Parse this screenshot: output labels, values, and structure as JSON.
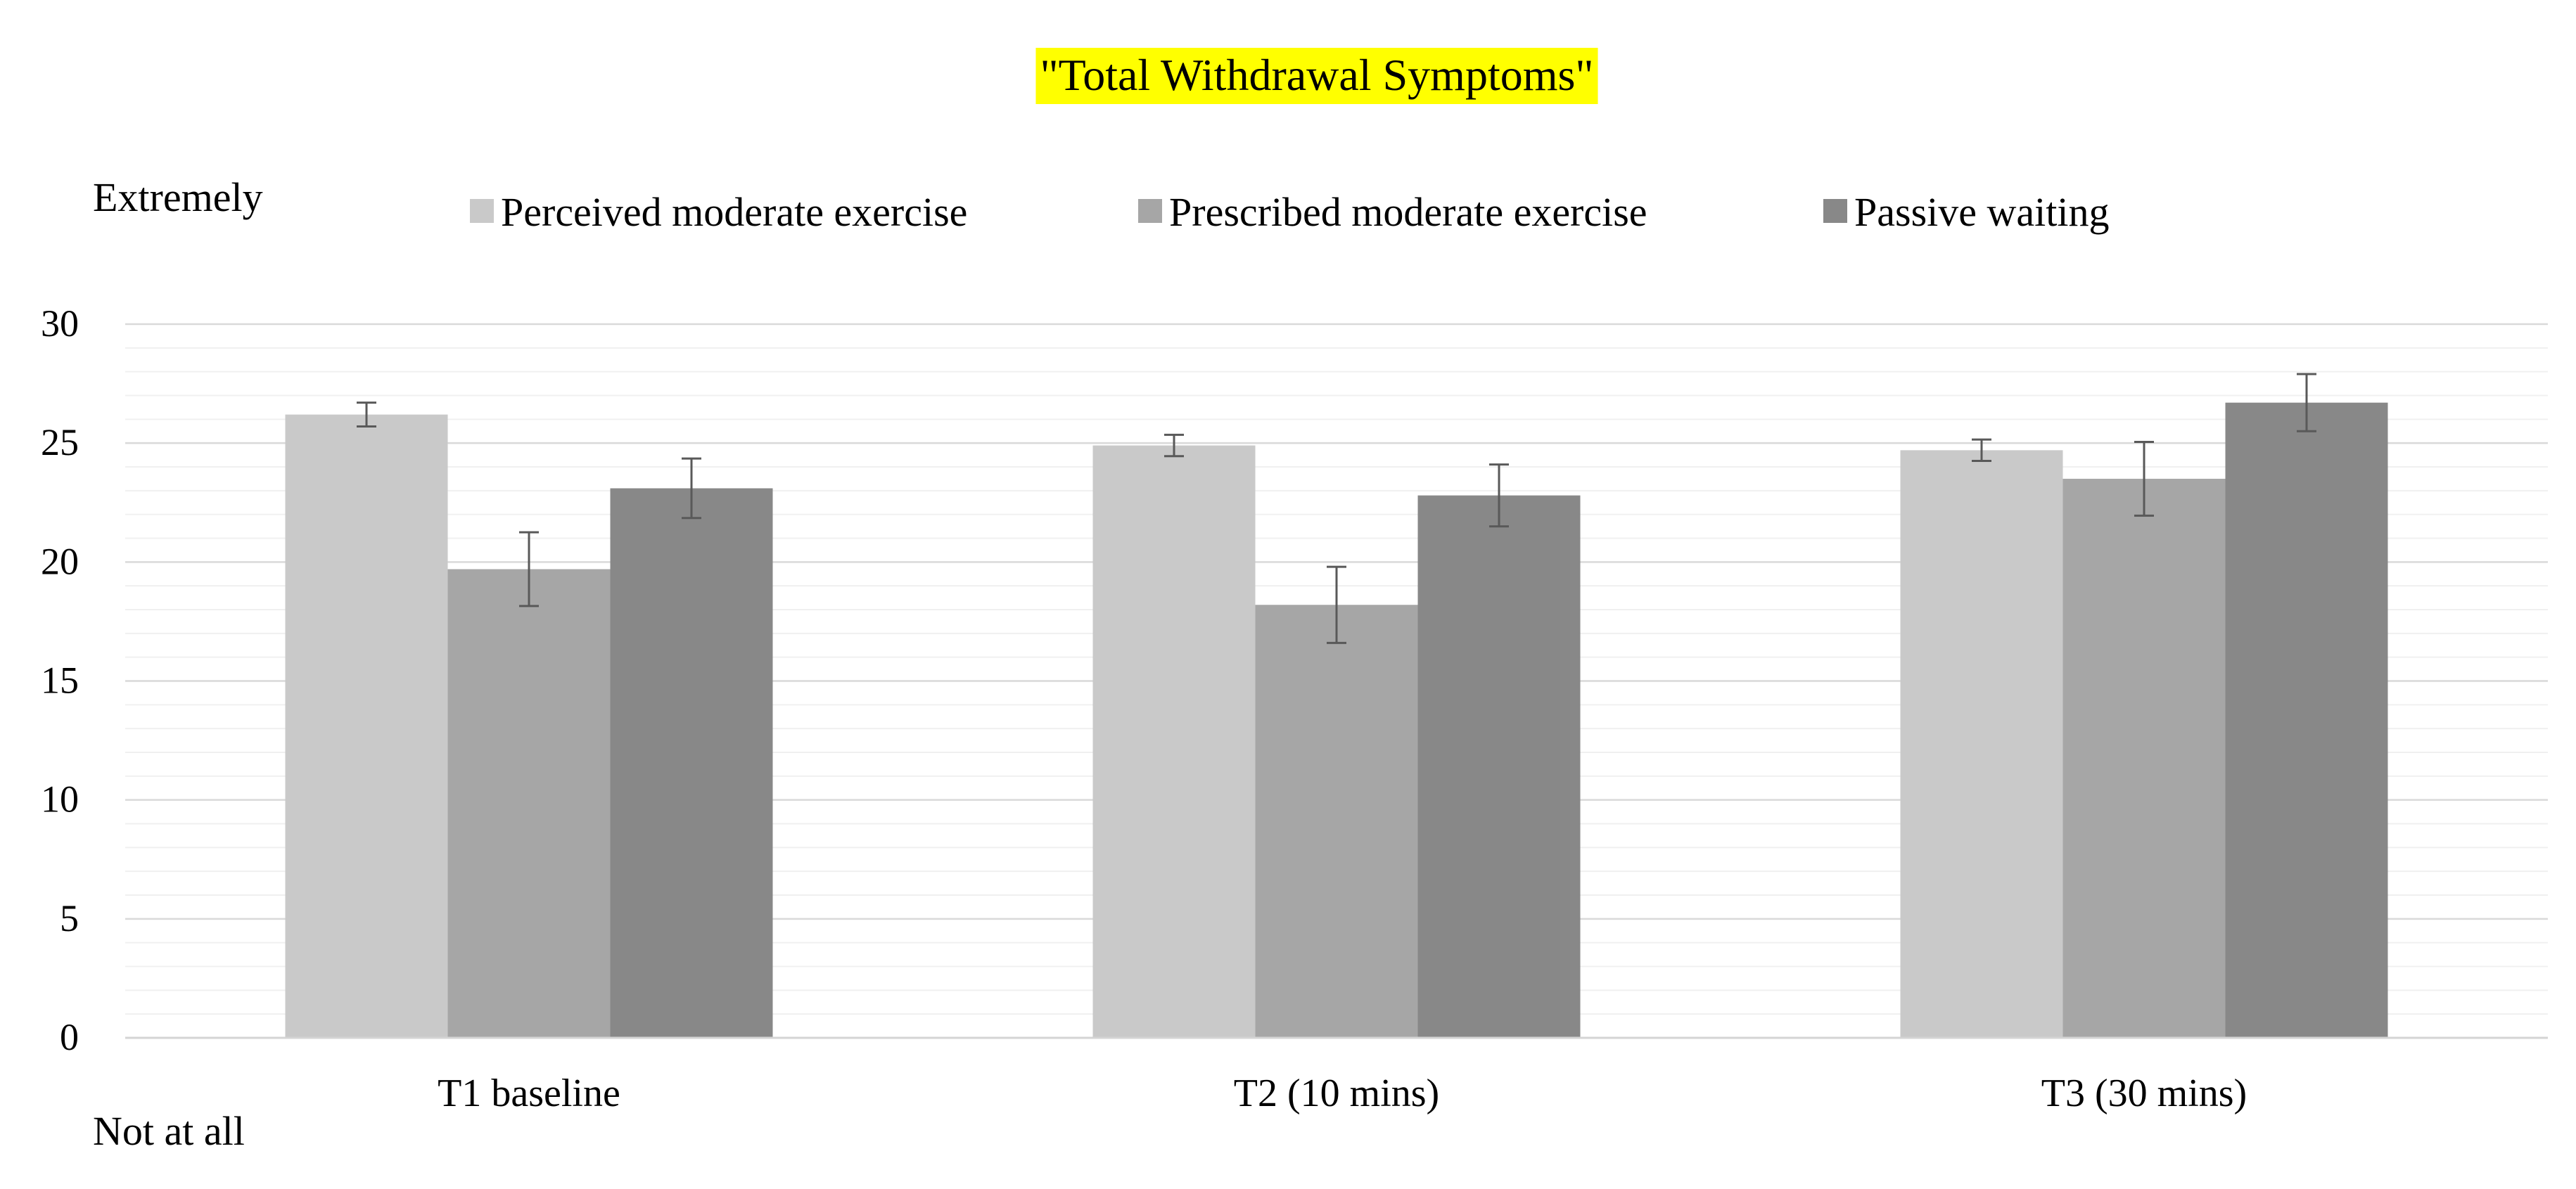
{
  "chart_data": {
    "type": "bar",
    "title": "\"Total Withdrawal Symptoms\"",
    "title_highlight_color": "#ffff00",
    "top_annotation": "Extremely",
    "bottom_annotation": "Not at all",
    "xlabel": "",
    "ylabel": "",
    "ylim": [
      0,
      30
    ],
    "yticks": [
      0,
      5,
      10,
      15,
      20,
      25,
      30
    ],
    "minor_grid_step": 1,
    "legend_position": "top-center",
    "categories": [
      "T1 baseline",
      "T2 (10 mins)",
      "T3 (30 mins)"
    ],
    "series": [
      {
        "name": "Perceived moderate exercise",
        "color": "#c9c9c9",
        "values": [
          26.2,
          24.9,
          24.7
        ],
        "error": [
          0.5,
          0.45,
          0.45
        ]
      },
      {
        "name": "Prescribed moderate exercise",
        "color": "#a6a6a6",
        "values": [
          19.7,
          18.2,
          23.5
        ],
        "error": [
          1.55,
          1.6,
          1.55
        ]
      },
      {
        "name": "Passive waiting",
        "color": "#888888",
        "values": [
          23.1,
          22.8,
          26.7
        ],
        "error": [
          1.25,
          1.3,
          1.2
        ]
      }
    ],
    "grid": true
  }
}
